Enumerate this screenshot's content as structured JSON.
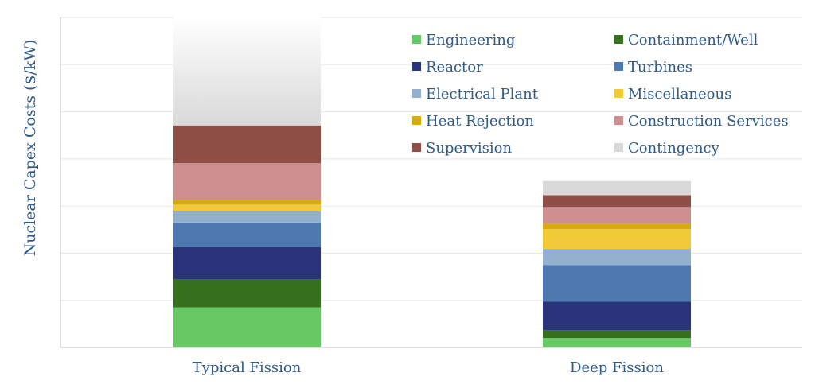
{
  "chart_data": {
    "type": "bar",
    "stacked": true,
    "title": "",
    "xlabel": "",
    "ylabel": "Nuclear Capex Costs ($/kW)",
    "ylim": [
      0,
      7
    ],
    "y_ticks_labeled": false,
    "grid": true,
    "legend_position": "top-right",
    "categories": [
      "Typical Fission",
      "Deep Fission"
    ],
    "series": [
      {
        "name": "Engineering",
        "color": "#66c964",
        "values": [
          0.85,
          0.2
        ]
      },
      {
        "name": "Containment/Well",
        "color": "#36711d",
        "values": [
          0.6,
          0.17
        ]
      },
      {
        "name": "Reactor",
        "color": "#29347b",
        "values": [
          0.68,
          0.6
        ]
      },
      {
        "name": "Turbines",
        "color": "#4e79b0",
        "values": [
          0.52,
          0.78
        ]
      },
      {
        "name": "Electrical Plant",
        "color": "#94b0cf",
        "values": [
          0.24,
          0.34
        ]
      },
      {
        "name": "Miscellaneous",
        "color": "#f0cb37",
        "values": [
          0.14,
          0.42
        ]
      },
      {
        "name": "Heat Rejection",
        "color": "#d7aa0d",
        "values": [
          0.1,
          0.12
        ]
      },
      {
        "name": "Construction Services",
        "color": "#cd8f8f",
        "values": [
          0.78,
          0.35
        ]
      },
      {
        "name": "Supervision",
        "color": "#904f46",
        "values": [
          0.8,
          0.25
        ]
      },
      {
        "name": "Contingency",
        "color": "#d9d9d9",
        "values": [
          2.3,
          0.3
        ]
      }
    ]
  }
}
